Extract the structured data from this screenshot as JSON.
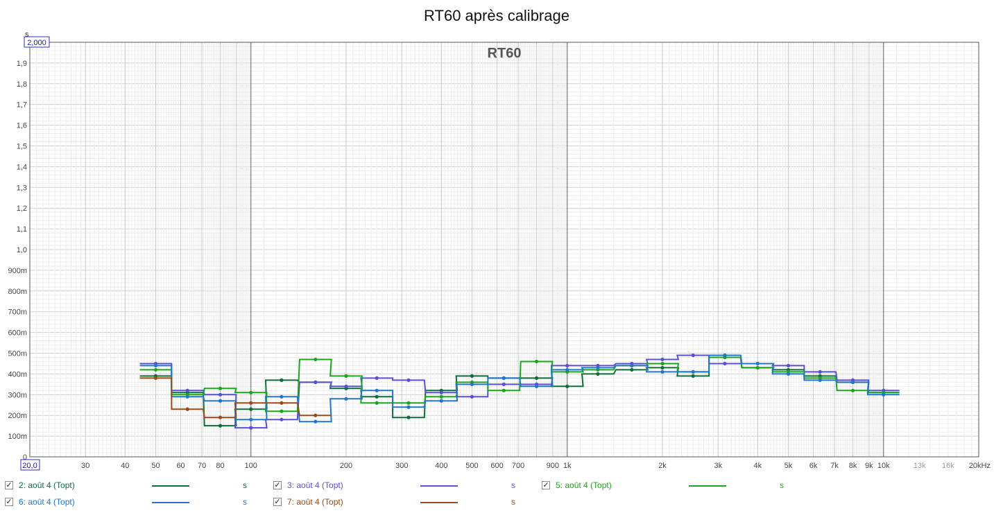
{
  "chart_data": {
    "type": "line",
    "title": "RT60 après calibrage",
    "inner_title": "RT60",
    "y_unit": "s",
    "x_unit": "Hz",
    "x_scale": "log",
    "xlim": [
      20,
      20000
    ],
    "ylim": [
      0,
      2.0
    ],
    "y_top_label": "2,000",
    "x_left_label": "20,0",
    "y_tick_values": [
      0.1,
      0.2,
      0.3,
      0.4,
      0.5,
      0.6,
      0.7,
      0.8,
      0.9,
      1.0,
      1.1,
      1.2,
      1.3,
      1.4,
      1.5,
      1.6,
      1.7,
      1.8,
      1.9
    ],
    "y_tick_labels": [
      "100m",
      "200m",
      "300m",
      "400m",
      "500m",
      "600m",
      "700m",
      "800m",
      "900m",
      "1,0",
      "1,1",
      "1,2",
      "1,3",
      "1,4",
      "1,5",
      "1,6",
      "1,7",
      "1,8",
      "1,9"
    ],
    "x_ticks": [
      {
        "v": 30,
        "label": "30",
        "out": false
      },
      {
        "v": 40,
        "label": "40",
        "out": false
      },
      {
        "v": 50,
        "label": "50",
        "out": false
      },
      {
        "v": 60,
        "label": "60",
        "out": false
      },
      {
        "v": 70,
        "label": "70",
        "out": false
      },
      {
        "v": 80,
        "label": "80",
        "out": false
      },
      {
        "v": 100,
        "label": "100",
        "out": false
      },
      {
        "v": 200,
        "label": "200",
        "out": false
      },
      {
        "v": 300,
        "label": "300",
        "out": false
      },
      {
        "v": 400,
        "label": "400",
        "out": false
      },
      {
        "v": 500,
        "label": "500",
        "out": false
      },
      {
        "v": 600,
        "label": "600",
        "out": false
      },
      {
        "v": 700,
        "label": "700",
        "out": false
      },
      {
        "v": 900,
        "label": "900",
        "out": false
      },
      {
        "v": 1000,
        "label": "1k",
        "out": false
      },
      {
        "v": 2000,
        "label": "2k",
        "out": false
      },
      {
        "v": 3000,
        "label": "3k",
        "out": false
      },
      {
        "v": 4000,
        "label": "4k",
        "out": false
      },
      {
        "v": 5000,
        "label": "5k",
        "out": false
      },
      {
        "v": 6000,
        "label": "6k",
        "out": false
      },
      {
        "v": 7000,
        "label": "7k",
        "out": false
      },
      {
        "v": 8000,
        "label": "8k",
        "out": false
      },
      {
        "v": 9000,
        "label": "9k",
        "out": false
      },
      {
        "v": 10000,
        "label": "10k",
        "out": false
      },
      {
        "v": 13000,
        "label": "13k",
        "out": true
      },
      {
        "v": 16000,
        "label": "16k",
        "out": true
      },
      {
        "v": 20000,
        "label": "20kHz",
        "out": false
      }
    ],
    "bands": [
      50,
      63,
      80,
      100,
      125,
      160,
      200,
      250,
      315,
      400,
      500,
      630,
      800,
      1000,
      1250,
      1600,
      2000,
      2500,
      3150,
      4000,
      5000,
      6300,
      8000,
      10000
    ],
    "series": [
      {
        "name": "2: août 4 (Topt)",
        "color": "#0f6b3a",
        "values": [
          0.39,
          0.31,
          0.15,
          0.23,
          0.37,
          0.36,
          0.33,
          0.29,
          0.19,
          0.32,
          0.39,
          0.38,
          0.38,
          0.34,
          0.4,
          0.42,
          0.43,
          0.39,
          0.48,
          0.43,
          0.42,
          0.39,
          0.36,
          0.31
        ]
      },
      {
        "name": "3: août 4 (Topt)",
        "color": "#5a4fd4",
        "values": [
          0.45,
          0.32,
          0.3,
          0.14,
          0.18,
          0.36,
          0.34,
          0.38,
          0.37,
          0.31,
          0.29,
          0.35,
          0.35,
          0.44,
          0.44,
          0.45,
          0.47,
          0.49,
          0.45,
          0.45,
          0.44,
          0.41,
          0.37,
          0.32
        ]
      },
      {
        "name": "5: août 4 (Topt)",
        "color": "#1aa61a",
        "values": [
          0.42,
          0.3,
          0.33,
          0.31,
          0.22,
          0.47,
          0.39,
          0.26,
          0.26,
          0.29,
          0.36,
          0.32,
          0.46,
          0.41,
          0.42,
          0.44,
          0.45,
          0.41,
          0.48,
          0.43,
          0.41,
          0.38,
          0.32,
          0.31
        ]
      },
      {
        "name": "6: août 4 (Topt)",
        "color": "#2176cc",
        "values": [
          0.44,
          0.29,
          0.27,
          0.18,
          0.29,
          0.17,
          0.28,
          0.32,
          0.24,
          0.27,
          0.35,
          0.38,
          0.34,
          0.42,
          0.43,
          0.44,
          0.41,
          0.41,
          0.49,
          0.45,
          0.4,
          0.37,
          0.36,
          0.3
        ]
      },
      {
        "name": "7: août 4 (Topt)",
        "color": "#9a4a14",
        "values": [
          0.38,
          0.23,
          0.19,
          0.26,
          0.26,
          0.2
        ]
      }
    ]
  },
  "legend": {
    "checkmark": "✓",
    "unit_label": "s",
    "items": [
      {
        "label": "2: août 4 (Topt)",
        "color": "#0f6b3a"
      },
      {
        "label": "3: août 4 (Topt)",
        "color": "#5a4fd4"
      },
      {
        "label": "5: août 4 (Topt)",
        "color": "#1aa61a"
      },
      {
        "label": "6: août 4 (Topt)",
        "color": "#2176cc"
      },
      {
        "label": "7: août 4 (Topt)",
        "color": "#9a4a14"
      }
    ]
  }
}
